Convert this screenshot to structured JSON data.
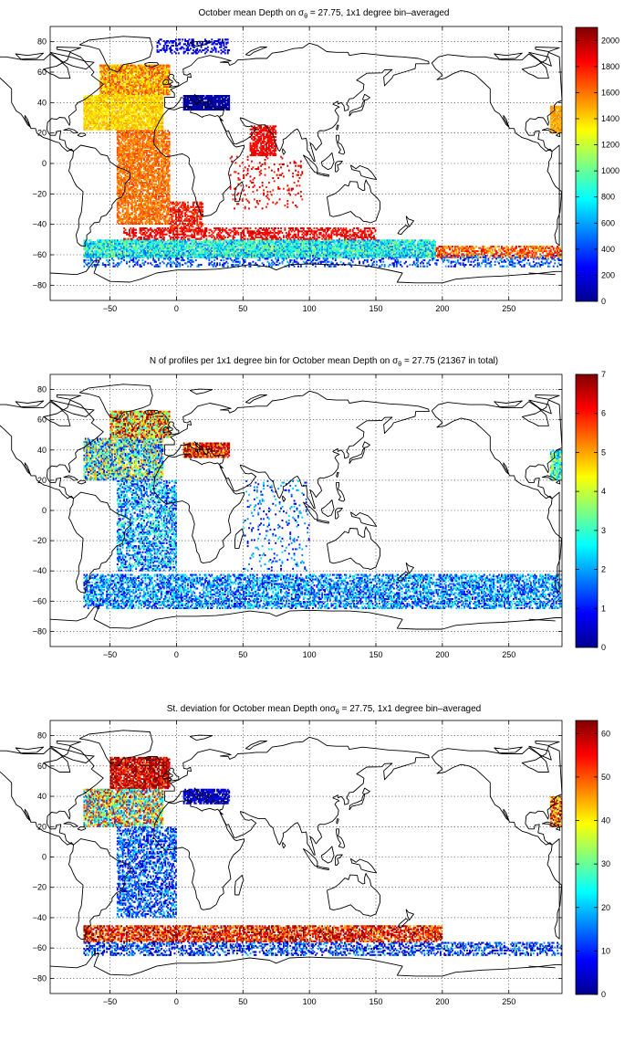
{
  "chart_data": [
    {
      "type": "heatmap",
      "title": {
        "pre": "October mean Depth on ",
        "sym": "σ",
        "sub": "θ",
        "post": " = 27.75, 1x1 degree bin–averaged"
      },
      "xlim": [
        -95,
        290
      ],
      "ylim": [
        -90,
        90
      ],
      "xticks": [
        -50,
        0,
        50,
        100,
        150,
        200,
        250
      ],
      "yticks": [
        -80,
        -60,
        -40,
        -20,
        0,
        20,
        40,
        60,
        80
      ],
      "grid": true,
      "colorbar": {
        "ticks": [
          0,
          200,
          400,
          600,
          800,
          1000,
          1200,
          1400,
          1600,
          1800,
          2000
        ],
        "max": 2100
      },
      "regions": [
        {
          "lon": [
            -58,
            -5
          ],
          "lat": [
            45,
            65
          ],
          "value": 1500,
          "spread": 250,
          "density": 0.9
        },
        {
          "lon": [
            -70,
            -10
          ],
          "lat": [
            22,
            45
          ],
          "value": 1400,
          "spread": 120,
          "density": 0.9
        },
        {
          "lon": [
            -45,
            -5
          ],
          "lat": [
            -40,
            22
          ],
          "value": 1600,
          "spread": 120,
          "density": 0.75
        },
        {
          "lon": [
            -5,
            20
          ],
          "lat": [
            -45,
            -25
          ],
          "value": 1800,
          "spread": 150,
          "density": 0.6
        },
        {
          "lon": [
            55,
            75
          ],
          "lat": [
            5,
            25
          ],
          "value": 1850,
          "spread": 80,
          "density": 0.7
        },
        {
          "lon": [
            40,
            95
          ],
          "lat": [
            -30,
            5
          ],
          "value": 1850,
          "spread": 120,
          "density": 0.1
        },
        {
          "lon": [
            5,
            40
          ],
          "lat": [
            35,
            45
          ],
          "value": 80,
          "spread": 60,
          "density": 0.9
        },
        {
          "lon": [
            -15,
            40
          ],
          "lat": [
            72,
            82
          ],
          "value": 200,
          "spread": 100,
          "density": 0.35
        },
        {
          "lon": [
            -70,
            195
          ],
          "lat": [
            -62,
            -50
          ],
          "value": 800,
          "spread": 350,
          "density": 0.85
        },
        {
          "lon": [
            -70,
            290
          ],
          "lat": [
            -68,
            -60
          ],
          "value": 400,
          "spread": 250,
          "density": 0.3
        },
        {
          "lon": [
            -40,
            150
          ],
          "lat": [
            -50,
            -42
          ],
          "value": 1850,
          "spread": 100,
          "density": 0.5
        },
        {
          "lon": [
            195,
            290
          ],
          "lat": [
            -62,
            -54
          ],
          "value": 1650,
          "spread": 250,
          "density": 0.6
        },
        {
          "lon": [
            281,
            290
          ],
          "lat": [
            20,
            38
          ],
          "value": 1500,
          "spread": 100,
          "density": 0.9
        }
      ]
    },
    {
      "type": "heatmap",
      "title": {
        "pre": "N of profiles per 1x1 degree bin for October mean Depth on ",
        "sym": "σ",
        "sub": "θ",
        "post": " = 27.75 (21367 in total)"
      },
      "xlim": [
        -95,
        290
      ],
      "ylim": [
        -90,
        90
      ],
      "xticks": [
        -50,
        0,
        50,
        100,
        150,
        200,
        250
      ],
      "yticks": [
        -80,
        -60,
        -40,
        -20,
        0,
        20,
        40,
        60,
        80
      ],
      "grid": true,
      "colorbar": {
        "ticks": [
          0,
          1,
          2,
          3,
          4,
          5,
          6,
          7
        ],
        "max": 7
      },
      "regions": [
        {
          "lon": [
            -50,
            -5
          ],
          "lat": [
            48,
            66
          ],
          "value": 5,
          "spread": 2.5,
          "density": 0.85
        },
        {
          "lon": [
            -70,
            -10
          ],
          "lat": [
            20,
            48
          ],
          "value": 3,
          "spread": 2.5,
          "density": 0.7
        },
        {
          "lon": [
            5,
            40
          ],
          "lat": [
            35,
            45
          ],
          "value": 6,
          "spread": 1.5,
          "density": 0.8
        },
        {
          "lon": [
            -45,
            0
          ],
          "lat": [
            -40,
            20
          ],
          "value": 2,
          "spread": 1.5,
          "density": 0.5
        },
        {
          "lon": [
            50,
            100
          ],
          "lat": [
            -40,
            20
          ],
          "value": 1.5,
          "spread": 1,
          "density": 0.08
        },
        {
          "lon": [
            -70,
            290
          ],
          "lat": [
            -65,
            -42
          ],
          "value": 1.8,
          "spread": 1.2,
          "density": 0.55
        },
        {
          "lon": [
            281,
            290
          ],
          "lat": [
            20,
            40
          ],
          "value": 3,
          "spread": 1.5,
          "density": 0.8
        }
      ]
    },
    {
      "type": "heatmap",
      "title": {
        "pre": "St. deviation for October mean Depth on",
        "sym": "σ",
        "sub": "θ",
        "post": " = 27.75, 1x1 degree bin–averaged"
      },
      "xlim": [
        -95,
        290
      ],
      "ylim": [
        -90,
        90
      ],
      "xticks": [
        -50,
        0,
        50,
        100,
        150,
        200,
        250
      ],
      "yticks": [
        -80,
        -60,
        -40,
        -20,
        0,
        20,
        40,
        60,
        80
      ],
      "grid": true,
      "colorbar": {
        "ticks": [
          0,
          10,
          20,
          30,
          40,
          50,
          60
        ],
        "max": 63
      },
      "regions": [
        {
          "lon": [
            -50,
            -5
          ],
          "lat": [
            45,
            66
          ],
          "value": 58,
          "spread": 10,
          "density": 0.85
        },
        {
          "lon": [
            -70,
            -10
          ],
          "lat": [
            20,
            45
          ],
          "value": 35,
          "spread": 25,
          "density": 0.7
        },
        {
          "lon": [
            5,
            40
          ],
          "lat": [
            35,
            45
          ],
          "value": 5,
          "spread": 5,
          "density": 0.8
        },
        {
          "lon": [
            -45,
            0
          ],
          "lat": [
            -40,
            20
          ],
          "value": 12,
          "spread": 10,
          "density": 0.5
        },
        {
          "lon": [
            -70,
            200
          ],
          "lat": [
            -56,
            -45
          ],
          "value": 55,
          "spread": 12,
          "density": 0.7
        },
        {
          "lon": [
            -70,
            290
          ],
          "lat": [
            -65,
            -56
          ],
          "value": 10,
          "spread": 10,
          "density": 0.4
        },
        {
          "lon": [
            281,
            290
          ],
          "lat": [
            20,
            40
          ],
          "value": 50,
          "spread": 15,
          "density": 0.8
        }
      ]
    }
  ]
}
